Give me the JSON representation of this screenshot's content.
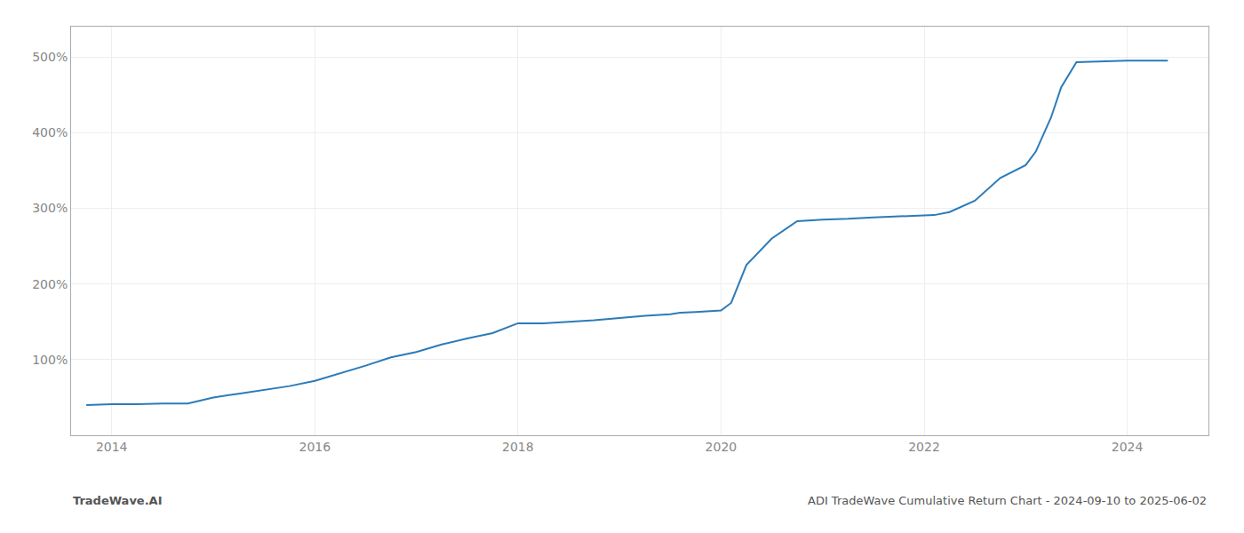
{
  "chart_data": {
    "type": "line",
    "annotations": [
      "TradeWave.AI",
      "ADI TradeWave Cumulative Return Chart - 2024-09-10 to 2025-06-02"
    ],
    "x": [
      2013.75,
      2014.0,
      2014.25,
      2014.5,
      2014.75,
      2015.0,
      2015.25,
      2015.5,
      2015.75,
      2016.0,
      2016.25,
      2016.5,
      2016.75,
      2017.0,
      2017.25,
      2017.5,
      2017.75,
      2018.0,
      2018.25,
      2018.5,
      2018.75,
      2019.0,
      2019.25,
      2019.5,
      2019.6,
      2019.75,
      2020.0,
      2020.1,
      2020.25,
      2020.5,
      2020.75,
      2021.0,
      2021.25,
      2021.5,
      2021.75,
      2022.0,
      2022.1,
      2022.25,
      2022.5,
      2022.75,
      2023.0,
      2023.1,
      2023.25,
      2023.35,
      2023.5,
      2024.0,
      2024.4
    ],
    "values": [
      40,
      41,
      41,
      42,
      42,
      50,
      55,
      60,
      65,
      72,
      82,
      92,
      103,
      110,
      120,
      128,
      135,
      148,
      148,
      150,
      152,
      155,
      158,
      160,
      162,
      163,
      165,
      175,
      225,
      260,
      283,
      285,
      286,
      288,
      289,
      290,
      291,
      295,
      310,
      340,
      357,
      375,
      420,
      460,
      493,
      495,
      495
    ],
    "color": "#2b7bb9",
    "xlim": [
      2013.6,
      2024.8
    ],
    "xticks": [
      2014,
      2016,
      2018,
      2020,
      2022,
      2024
    ],
    "ylim": [
      0,
      540
    ],
    "yticks": [
      {
        "value": 100,
        "label": "100%"
      },
      {
        "value": 200,
        "label": "200%"
      },
      {
        "value": 300,
        "label": "300%"
      },
      {
        "value": 400,
        "label": "400%"
      },
      {
        "value": 500,
        "label": "500%"
      }
    ],
    "grid": true
  }
}
